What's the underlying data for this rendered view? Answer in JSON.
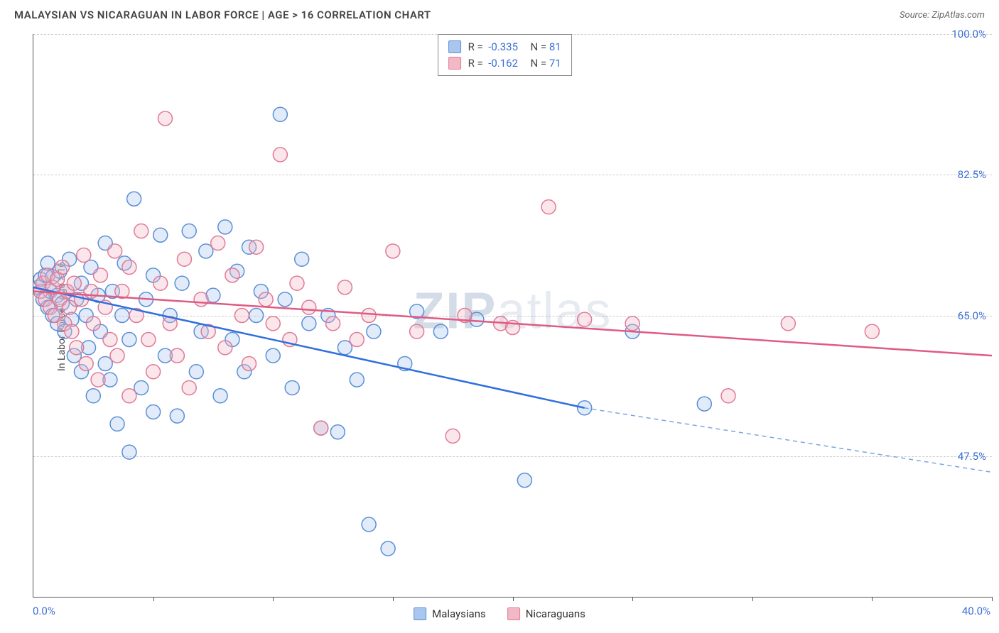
{
  "header": {
    "title": "MALAYSIAN VS NICARAGUAN IN LABOR FORCE | AGE > 16 CORRELATION CHART",
    "source": "Source: ZipAtlas.com"
  },
  "watermark": {
    "bold": "ZIP",
    "rest": "atlas"
  },
  "y_axis": {
    "label": "In Labor Force | Age > 16"
  },
  "chart": {
    "type": "scatter",
    "xlim": [
      0,
      40
    ],
    "ylim": [
      30,
      100
    ],
    "x_ticks": [
      0,
      5,
      10,
      15,
      20,
      25,
      30,
      35,
      40
    ],
    "y_grid": [
      47.5,
      65.0,
      82.5,
      100.0
    ],
    "y_grid_labels": [
      "47.5%",
      "65.0%",
      "82.5%",
      "100.0%"
    ],
    "x_start_label": "0.0%",
    "x_end_label": "40.0%",
    "grid_color": "#cccccc",
    "axis_color": "#555555",
    "background_color": "#ffffff",
    "marker_radius": 10,
    "label_fontsize": 15,
    "label_color": "#3b6fd6",
    "series": [
      {
        "key": "malaysians",
        "label": "Malaysians",
        "color_fill": "#a8c6ee",
        "color_stroke": "#5b8fd6",
        "R": "-0.335",
        "N": "81",
        "trend": {
          "x1": 0,
          "y1": 68.5,
          "x2": 23,
          "y2": 53.5,
          "color": "#2f6fe0",
          "width": 2.5,
          "ext_x2": 40,
          "ext_y2": 45.5,
          "ext_dash": "6,5",
          "ext_color": "#7aa6e2"
        },
        "points": [
          [
            0.2,
            68.5
          ],
          [
            0.3,
            69.5
          ],
          [
            0.4,
            67.0
          ],
          [
            0.5,
            70.0
          ],
          [
            0.6,
            66.0
          ],
          [
            0.6,
            71.5
          ],
          [
            0.7,
            68.0
          ],
          [
            0.8,
            65.0
          ],
          [
            0.8,
            69.8
          ],
          [
            1.0,
            67.5
          ],
          [
            1.0,
            64.0
          ],
          [
            1.1,
            70.5
          ],
          [
            1.2,
            66.5
          ],
          [
            1.3,
            63.0
          ],
          [
            1.4,
            68.0
          ],
          [
            1.5,
            72.0
          ],
          [
            1.6,
            64.5
          ],
          [
            1.7,
            60.0
          ],
          [
            1.8,
            67.0
          ],
          [
            2.0,
            69.0
          ],
          [
            2.0,
            58.0
          ],
          [
            2.2,
            65.0
          ],
          [
            2.3,
            61.0
          ],
          [
            2.4,
            71.0
          ],
          [
            2.5,
            55.0
          ],
          [
            2.7,
            67.5
          ],
          [
            2.8,
            63.0
          ],
          [
            3.0,
            59.0
          ],
          [
            3.0,
            74.0
          ],
          [
            3.2,
            57.0
          ],
          [
            3.3,
            68.0
          ],
          [
            3.5,
            51.5
          ],
          [
            3.7,
            65.0
          ],
          [
            3.8,
            71.5
          ],
          [
            4.0,
            62.0
          ],
          [
            4.0,
            48.0
          ],
          [
            4.2,
            79.5
          ],
          [
            4.5,
            56.0
          ],
          [
            4.7,
            67.0
          ],
          [
            5.0,
            53.0
          ],
          [
            5.0,
            70.0
          ],
          [
            5.3,
            75.0
          ],
          [
            5.5,
            60.0
          ],
          [
            5.7,
            65.0
          ],
          [
            6.0,
            52.5
          ],
          [
            6.2,
            69.0
          ],
          [
            6.5,
            75.5
          ],
          [
            6.8,
            58.0
          ],
          [
            7.0,
            63.0
          ],
          [
            7.2,
            73.0
          ],
          [
            7.5,
            67.5
          ],
          [
            7.8,
            55.0
          ],
          [
            8.0,
            76.0
          ],
          [
            8.3,
            62.0
          ],
          [
            8.5,
            70.5
          ],
          [
            8.8,
            58.0
          ],
          [
            9.0,
            73.5
          ],
          [
            9.3,
            65.0
          ],
          [
            9.5,
            68.0
          ],
          [
            10.0,
            60.0
          ],
          [
            10.3,
            90.0
          ],
          [
            10.5,
            67.0
          ],
          [
            10.8,
            56.0
          ],
          [
            11.2,
            72.0
          ],
          [
            11.5,
            64.0
          ],
          [
            12.0,
            51.0
          ],
          [
            12.3,
            65.0
          ],
          [
            12.7,
            50.5
          ],
          [
            13.0,
            61.0
          ],
          [
            13.5,
            57.0
          ],
          [
            14.0,
            39.0
          ],
          [
            14.2,
            63.0
          ],
          [
            14.8,
            36.0
          ],
          [
            15.5,
            59.0
          ],
          [
            16.0,
            65.5
          ],
          [
            17.0,
            63.0
          ],
          [
            18.5,
            64.5
          ],
          [
            20.5,
            44.5
          ],
          [
            23.0,
            53.5
          ],
          [
            25.0,
            63.0
          ],
          [
            28.0,
            54.0
          ]
        ]
      },
      {
        "key": "nicaraguans",
        "label": "Nicaraguans",
        "color_fill": "#f2b8c6",
        "color_stroke": "#e07a96",
        "R": "-0.162",
        "N": "71",
        "trend": {
          "x1": 0,
          "y1": 68.0,
          "x2": 40,
          "y2": 60.0,
          "color": "#e05a82",
          "width": 2.5
        },
        "points": [
          [
            0.3,
            68.0
          ],
          [
            0.4,
            69.0
          ],
          [
            0.5,
            67.0
          ],
          [
            0.6,
            70.0
          ],
          [
            0.7,
            66.0
          ],
          [
            0.8,
            68.5
          ],
          [
            0.9,
            65.0
          ],
          [
            1.0,
            69.5
          ],
          [
            1.1,
            67.0
          ],
          [
            1.2,
            71.0
          ],
          [
            1.3,
            64.0
          ],
          [
            1.4,
            68.0
          ],
          [
            1.5,
            66.0
          ],
          [
            1.6,
            63.0
          ],
          [
            1.7,
            69.0
          ],
          [
            1.8,
            61.0
          ],
          [
            2.0,
            67.0
          ],
          [
            2.1,
            72.5
          ],
          [
            2.2,
            59.0
          ],
          [
            2.4,
            68.0
          ],
          [
            2.5,
            64.0
          ],
          [
            2.7,
            57.0
          ],
          [
            2.8,
            70.0
          ],
          [
            3.0,
            66.0
          ],
          [
            3.2,
            62.0
          ],
          [
            3.4,
            73.0
          ],
          [
            3.5,
            60.0
          ],
          [
            3.7,
            68.0
          ],
          [
            4.0,
            55.0
          ],
          [
            4.0,
            71.0
          ],
          [
            4.3,
            65.0
          ],
          [
            4.5,
            75.5
          ],
          [
            4.8,
            62.0
          ],
          [
            5.0,
            58.0
          ],
          [
            5.3,
            69.0
          ],
          [
            5.5,
            89.5
          ],
          [
            5.7,
            64.0
          ],
          [
            6.0,
            60.0
          ],
          [
            6.3,
            72.0
          ],
          [
            6.5,
            56.0
          ],
          [
            7.0,
            67.0
          ],
          [
            7.3,
            63.0
          ],
          [
            7.7,
            74.0
          ],
          [
            8.0,
            61.0
          ],
          [
            8.3,
            70.0
          ],
          [
            8.7,
            65.0
          ],
          [
            9.0,
            59.0
          ],
          [
            9.3,
            73.5
          ],
          [
            9.7,
            67.0
          ],
          [
            10.0,
            64.0
          ],
          [
            10.3,
            85.0
          ],
          [
            10.7,
            62.0
          ],
          [
            11.0,
            69.0
          ],
          [
            11.5,
            66.0
          ],
          [
            12.0,
            51.0
          ],
          [
            12.5,
            64.0
          ],
          [
            13.0,
            68.5
          ],
          [
            13.5,
            62.0
          ],
          [
            14.0,
            65.0
          ],
          [
            15.0,
            73.0
          ],
          [
            16.0,
            63.0
          ],
          [
            17.5,
            50.0
          ],
          [
            18.0,
            65.0
          ],
          [
            19.5,
            64.0
          ],
          [
            20.0,
            63.5
          ],
          [
            21.5,
            78.5
          ],
          [
            23.0,
            64.5
          ],
          [
            25.0,
            64.0
          ],
          [
            29.0,
            55.0
          ],
          [
            31.5,
            64.0
          ],
          [
            35.0,
            63.0
          ]
        ]
      }
    ]
  },
  "legend_bottom": [
    {
      "label": "Malaysians",
      "fill": "#a8c6ee",
      "stroke": "#5b8fd6"
    },
    {
      "label": "Nicaraguans",
      "fill": "#f2b8c6",
      "stroke": "#e07a96"
    }
  ]
}
